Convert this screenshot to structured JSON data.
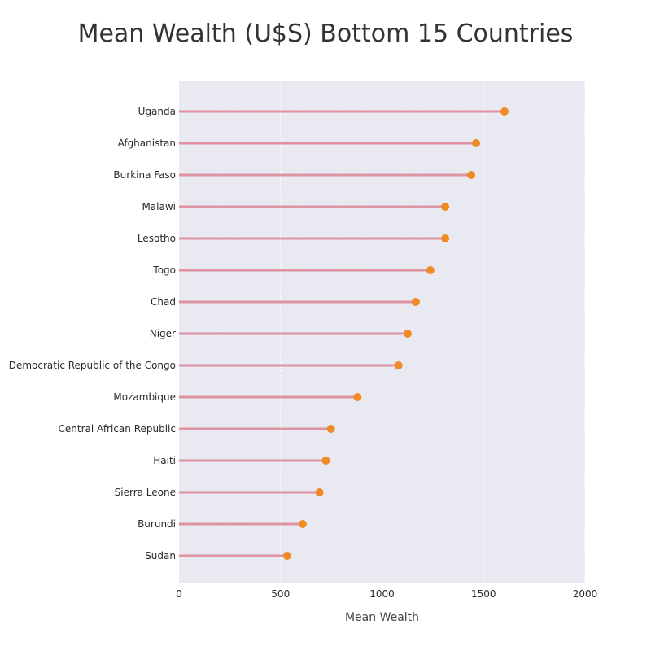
{
  "chart_data": {
    "type": "lollipop",
    "title": "Mean Wealth (U$S) Bottom 15 Countries",
    "xlabel": "Mean Wealth",
    "ylabel": "",
    "xlim": [
      0,
      2000
    ],
    "x_ticks": [
      0,
      500,
      1000,
      1500,
      2000
    ],
    "grid": true,
    "categories": [
      "Uganda",
      "Afghanistan",
      "Burkina Faso",
      "Malawi",
      "Lesotho",
      "Togo",
      "Chad",
      "Niger",
      "Democratic Republic of the Congo",
      "Mozambique",
      "Central African Republic",
      "Haiti",
      "Sierra Leone",
      "Burundi",
      "Sudan"
    ],
    "values": [
      1603,
      1463,
      1439,
      1311,
      1311,
      1238,
      1166,
      1126,
      1081,
      879,
      748,
      723,
      692,
      609,
      532
    ],
    "colors": {
      "plot_bg": "#e9e9f2",
      "stem": "#e0889a",
      "marker": "#f08a24",
      "grid": "#ffffff"
    }
  }
}
